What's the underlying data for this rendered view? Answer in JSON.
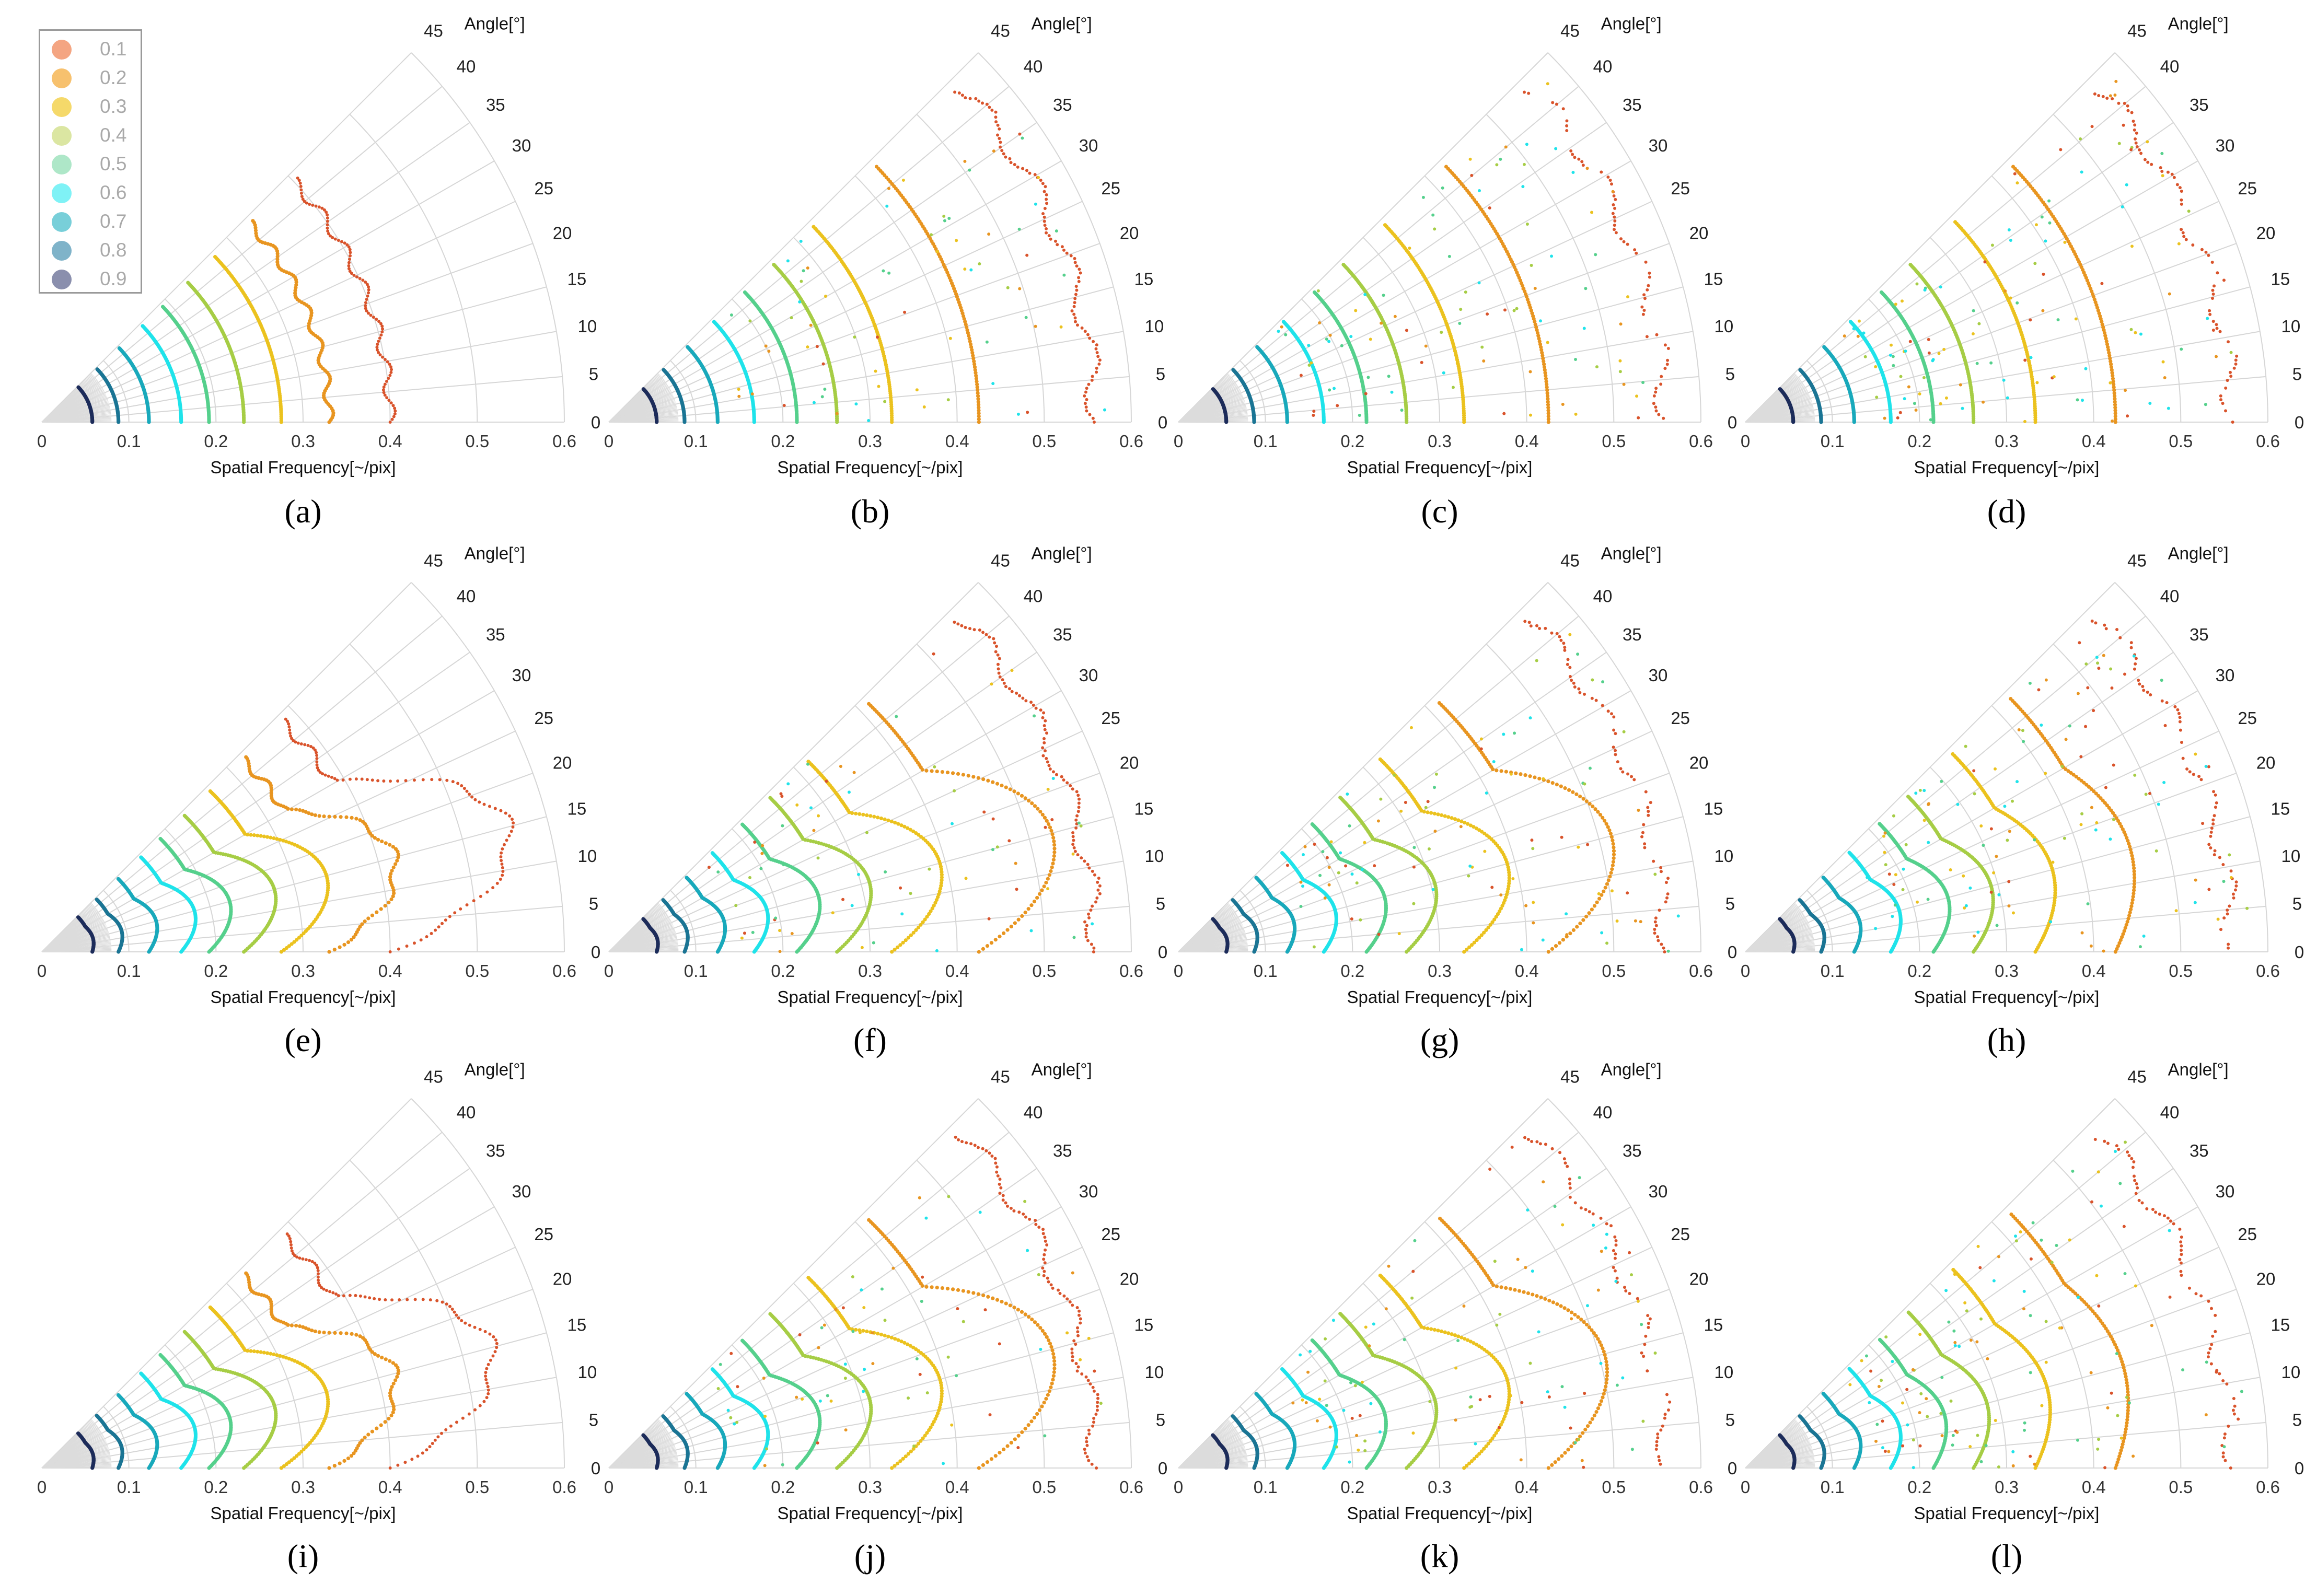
{
  "legend": {
    "entries": [
      {
        "label": "0.1",
        "color": "#f4a582"
      },
      {
        "label": "0.2",
        "color": "#f7c16e"
      },
      {
        "label": "0.3",
        "color": "#f5d96a"
      },
      {
        "label": "0.4",
        "color": "#dbe6a2"
      },
      {
        "label": "0.5",
        "color": "#aee7c8"
      },
      {
        "label": "0.6",
        "color": "#7ff2f6"
      },
      {
        "label": "0.7",
        "color": "#78cfd9"
      },
      {
        "label": "0.8",
        "color": "#7fb3c9"
      },
      {
        "label": "0.9",
        "color": "#8a8fad"
      }
    ]
  },
  "chart_data": {
    "type": "scatter",
    "coordinate_system": "polar-sector",
    "radial_axis": {
      "label": "Spatial Frequency[~/pix]",
      "range": [
        0,
        0.6
      ],
      "ticks": [
        "0",
        "0.1",
        "0.2",
        "0.3",
        "0.4",
        "0.5",
        "0.6"
      ]
    },
    "angular_axis": {
      "label": "Angle[°]",
      "range": [
        0,
        45
      ],
      "ticks": [
        "0",
        "5",
        "10",
        "15",
        "20",
        "25",
        "30",
        "35",
        "40",
        "45"
      ]
    },
    "grid": true,
    "series_colors": [
      "#d9532b",
      "#e89520",
      "#ebc21e",
      "#a6cd45",
      "#55d08c",
      "#1fe3ea",
      "#19a9bb",
      "#1b7594",
      "#1d2c5a"
    ],
    "levels": [
      "0.1",
      "0.2",
      "0.3",
      "0.4",
      "0.5",
      "0.6",
      "0.7",
      "0.8",
      "0.9"
    ],
    "panels": [
      {
        "label": "(a)",
        "r": [
          0.4,
          0.33,
          0.275,
          0.232,
          0.192,
          0.16,
          0.123,
          0.088,
          0.058
        ],
        "peak": [
          0,
          0,
          0,
          0,
          0,
          0,
          0,
          0,
          0
        ],
        "clean": true,
        "noise": 0.0
      },
      {
        "label": "(b)",
        "r": [
          0.56,
          0.425,
          0.325,
          0.262,
          0.216,
          0.167,
          0.125,
          0.087,
          0.055
        ],
        "peak": [
          0,
          0,
          0,
          0,
          0,
          0,
          0,
          0,
          0
        ],
        "clean": false,
        "noise": 0.2
      },
      {
        "label": "(c)",
        "r": [
          0.56,
          0.425,
          0.328,
          0.262,
          0.216,
          0.167,
          0.125,
          0.087,
          0.055
        ],
        "peak": [
          0,
          0,
          0,
          0,
          0,
          0,
          0,
          0,
          0
        ],
        "clean": false,
        "noise": 0.35
      },
      {
        "label": "(d)",
        "r": [
          0.56,
          0.425,
          0.333,
          0.262,
          0.216,
          0.167,
          0.125,
          0.087,
          0.055
        ],
        "peak": [
          0,
          0,
          0,
          0,
          0,
          0,
          0,
          0,
          0
        ],
        "clean": false,
        "noise": 0.5
      },
      {
        "label": "(e)",
        "r": [
          0.4,
          0.33,
          0.275,
          0.232,
          0.192,
          0.16,
          0.123,
          0.088,
          0.058
        ],
        "peak": [
          0.4,
          0.28,
          0.24,
          0.2,
          0.17,
          0.14,
          0.11,
          0.08,
          0.05
        ],
        "clean": true,
        "noise": 0.0
      },
      {
        "label": "(f)",
        "r": [
          0.56,
          0.425,
          0.325,
          0.262,
          0.216,
          0.167,
          0.125,
          0.087,
          0.055
        ],
        "peak": [
          0.33,
          0.25,
          0.22,
          0.19,
          0.16,
          0.13,
          0.1,
          0.07,
          0.05
        ],
        "clean": false,
        "noise": 0.2
      },
      {
        "label": "(g)",
        "r": [
          0.56,
          0.425,
          0.328,
          0.262,
          0.216,
          0.167,
          0.125,
          0.087,
          0.055
        ],
        "peak": [
          0.2,
          0.22,
          0.2,
          0.17,
          0.14,
          0.12,
          0.1,
          0.07,
          0.05
        ],
        "clean": false,
        "noise": 0.35
      },
      {
        "label": "(h)",
        "r": [
          0.56,
          0.425,
          0.333,
          0.262,
          0.216,
          0.167,
          0.125,
          0.087,
          0.055
        ],
        "peak": [
          0.05,
          0.08,
          0.1,
          0.12,
          0.12,
          0.1,
          0.09,
          0.07,
          0.05
        ],
        "clean": false,
        "noise": 0.5
      },
      {
        "label": "(i)",
        "r": [
          0.4,
          0.33,
          0.275,
          0.232,
          0.192,
          0.16,
          0.123,
          0.088,
          0.058
        ],
        "peak": [
          0.35,
          0.28,
          0.24,
          0.2,
          0.17,
          0.14,
          0.11,
          0.08,
          0.05
        ],
        "clean": true,
        "noise": 0.0
      },
      {
        "label": "(j)",
        "r": [
          0.56,
          0.425,
          0.325,
          0.262,
          0.216,
          0.167,
          0.125,
          0.087,
          0.055
        ],
        "peak": [
          0.33,
          0.25,
          0.22,
          0.19,
          0.16,
          0.13,
          0.1,
          0.07,
          0.05
        ],
        "clean": false,
        "noise": 0.2
      },
      {
        "label": "(k)",
        "r": [
          0.56,
          0.425,
          0.328,
          0.262,
          0.216,
          0.167,
          0.125,
          0.087,
          0.055
        ],
        "peak": [
          0.15,
          0.2,
          0.2,
          0.17,
          0.14,
          0.12,
          0.1,
          0.07,
          0.05
        ],
        "clean": false,
        "noise": 0.35
      },
      {
        "label": "(l)",
        "r": [
          0.56,
          0.425,
          0.333,
          0.262,
          0.216,
          0.167,
          0.125,
          0.087,
          0.055
        ],
        "peak": [
          0.05,
          0.06,
          0.08,
          0.1,
          0.1,
          0.1,
          0.09,
          0.07,
          0.05
        ],
        "clean": false,
        "noise": 0.5
      }
    ]
  }
}
